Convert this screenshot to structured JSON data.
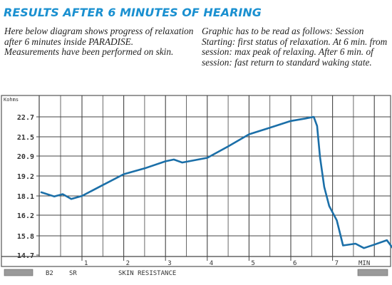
{
  "heading": "RESULTS AFTER 6 MINUTES OF HEARING",
  "description_left": [
    "Here below diagram shows progress of relaxation after 6 minutes inside PARADISE.",
    "Measurements have been performed on skin."
  ],
  "description_right": [
    "Graphic has to be read as follows: Session Starting: first status of relaxation. At 6 min. from session: max peak of relaxing. After 6 min. of session: fast return to standard waking state."
  ],
  "colors": {
    "heading": "#1a90d0",
    "line": "#1b6fa8",
    "grid": "#444444"
  },
  "chart_data": {
    "type": "line",
    "ylabel": "Kohms",
    "xlabel": "MIN",
    "y_ticks": [
      14.7,
      15.8,
      16.2,
      18.1,
      19.2,
      20.9,
      21.5,
      22.7
    ],
    "y_tick_labels": [
      "14.7",
      "15.8",
      "16.2",
      "18.1",
      "19.2",
      "20.9",
      "21.5",
      "22.7"
    ],
    "x_ticks": [
      1,
      2,
      3,
      4,
      5,
      6,
      7
    ],
    "x_tick_labels": [
      "1",
      "2",
      "3",
      "4",
      "5",
      "6",
      "7"
    ],
    "xlim": [
      0,
      8.7
    ],
    "footer_labels": [
      "B2",
      "SR",
      "SKIN RESISTANCE"
    ],
    "series": [
      {
        "points": [
          [
            0.05,
            18.3
          ],
          [
            0.35,
            18.05
          ],
          [
            0.55,
            18.2
          ],
          [
            0.75,
            17.8
          ],
          [
            1.0,
            18.1
          ],
          [
            1.5,
            18.7
          ],
          [
            2.0,
            19.35
          ],
          [
            2.5,
            19.85
          ],
          [
            3.0,
            20.45
          ],
          [
            3.2,
            20.6
          ],
          [
            3.4,
            20.35
          ],
          [
            4.0,
            20.75
          ],
          [
            4.5,
            21.2
          ],
          [
            5.0,
            21.65
          ],
          [
            5.5,
            22.05
          ],
          [
            6.0,
            22.45
          ],
          [
            6.35,
            22.6
          ],
          [
            6.55,
            22.7
          ],
          [
            6.63,
            22.15
          ],
          [
            6.7,
            20.8
          ],
          [
            6.8,
            18.6
          ],
          [
            6.92,
            17.1
          ],
          [
            7.1,
            16.1
          ],
          [
            7.25,
            15.25
          ],
          [
            7.55,
            15.35
          ],
          [
            7.75,
            15.1
          ],
          [
            8.0,
            15.3
          ],
          [
            8.3,
            15.55
          ],
          [
            8.55,
            14.75
          ]
        ]
      }
    ]
  }
}
